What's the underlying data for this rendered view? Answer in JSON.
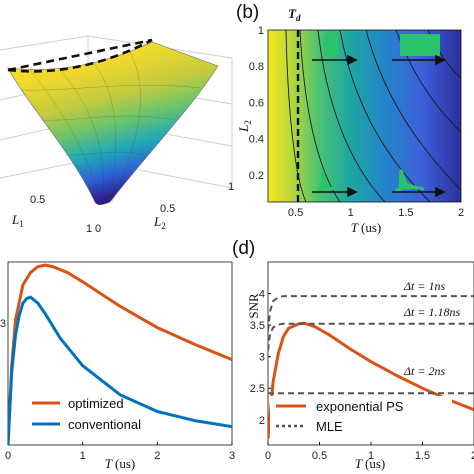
{
  "chart_data": [
    {
      "panel": "a",
      "type": "surface",
      "xlabel": "L",
      "xlabel_sub": "1",
      "ylabel": "L",
      "ylabel_sub": "2",
      "x_ticks": [
        "0",
        "0.5",
        "1"
      ],
      "y_ticks": [
        "0",
        "0.5",
        "1"
      ],
      "colormap": [
        "#2b1f8c",
        "#2e62d8",
        "#1aa6c9",
        "#46c18f",
        "#b8c84a",
        "#f4d82d",
        "#f9e71e"
      ]
    },
    {
      "panel": "b",
      "type": "heatmap",
      "label": "(b)",
      "xlabel": "T",
      "xlabel_unit": "(us)",
      "ylabel": "L",
      "ylabel_sub": "2",
      "xlim": [
        0.25,
        2
      ],
      "ylim": [
        0.05,
        1
      ],
      "x_ticks": [
        "0.5",
        "1",
        "1.5",
        "2"
      ],
      "y_ticks": [
        "0.2",
        "0.4",
        "0.6",
        "0.8",
        "1"
      ],
      "Td_label": "T",
      "Td_sub": "d",
      "Td_value": 0.43,
      "arrow_rows": [
        0.85,
        0.15
      ],
      "colormap": [
        "#f9e71e",
        "#b8d83a",
        "#4cc46f",
        "#1fa7a0",
        "#2386c9",
        "#3d5fd9",
        "#2b2f9e"
      ]
    },
    {
      "panel": "c",
      "type": "line",
      "xlabel": "T",
      "xlabel_unit": "(us)",
      "xlim": [
        0,
        3
      ],
      "ylim": [
        2.2,
        3.4
      ],
      "x_ticks": [
        "0",
        "1",
        "2",
        "3"
      ],
      "y_ticks": [
        "3"
      ],
      "series": [
        {
          "name": "optimized",
          "color": "#d95319",
          "x": [
            0,
            0.05,
            0.1,
            0.2,
            0.3,
            0.4,
            0.5,
            0.6,
            0.8,
            1.0,
            1.25,
            1.5,
            2.0,
            2.5,
            3.0
          ],
          "y": [
            2.2,
            2.72,
            3.02,
            3.25,
            3.33,
            3.37,
            3.38,
            3.37,
            3.33,
            3.27,
            3.19,
            3.11,
            2.97,
            2.86,
            2.76
          ]
        },
        {
          "name": "conventional",
          "color": "#0072bd",
          "x": [
            0,
            0.05,
            0.1,
            0.15,
            0.2,
            0.25,
            0.3,
            0.4,
            0.5,
            0.7,
            1.0,
            1.5,
            2.0,
            2.5,
            3.0
          ],
          "y": [
            2.2,
            2.68,
            2.92,
            3.05,
            3.13,
            3.16,
            3.17,
            3.13,
            3.06,
            2.9,
            2.72,
            2.53,
            2.42,
            2.36,
            2.32
          ]
        }
      ]
    },
    {
      "panel": "d",
      "type": "line",
      "label": "(d)",
      "xlabel": "T",
      "xlabel_unit": "(us)",
      "ylabel": "SNR",
      "xlim": [
        0,
        2
      ],
      "ylim": [
        1.6,
        4.5
      ],
      "x_ticks": [
        "0",
        "0.5",
        "1",
        "1.5",
        "2"
      ],
      "y_ticks": [
        "2",
        "2.5",
        "3",
        "3.5",
        "4"
      ],
      "series": [
        {
          "name": "exponential PS",
          "color": "#d95319",
          "x": [
            0,
            0.05,
            0.1,
            0.15,
            0.2,
            0.3,
            0.35,
            0.45,
            0.6,
            0.8,
            1.0,
            1.25,
            1.5,
            1.75,
            2.0
          ],
          "y": [
            1.7,
            2.6,
            3.05,
            3.32,
            3.45,
            3.52,
            3.53,
            3.48,
            3.34,
            3.12,
            2.92,
            2.7,
            2.5,
            2.32,
            2.16
          ]
        },
        {
          "name": "MLE",
          "color": "#555555",
          "dashed": true,
          "level": 3.96,
          "x": [
            0,
            0.02,
            0.05,
            0.1,
            0.15,
            0.2,
            0.3,
            0.5,
            1.0,
            1.5,
            2.0
          ],
          "y": [
            3.4,
            3.72,
            3.88,
            3.94,
            3.96,
            3.96,
            3.96,
            3.96,
            3.96,
            3.96,
            3.96
          ]
        },
        {
          "dashed": true,
          "color": "#555555",
          "level": 3.52,
          "x": [
            0,
            0.02,
            0.05,
            0.1,
            0.15,
            0.2,
            0.3,
            0.5,
            1.0,
            1.5,
            2.0
          ],
          "y": [
            3.1,
            3.36,
            3.46,
            3.51,
            3.52,
            3.52,
            3.52,
            3.52,
            3.52,
            3.52,
            3.52
          ]
        },
        {
          "dashed": true,
          "color": "#555555",
          "level": 2.42,
          "x": [
            0,
            2.0
          ],
          "y": [
            2.42,
            2.42
          ]
        }
      ],
      "annotations": [
        "Δt = 1ns",
        "Δt = 1.18ns",
        "Δt = 2ns"
      ]
    }
  ]
}
